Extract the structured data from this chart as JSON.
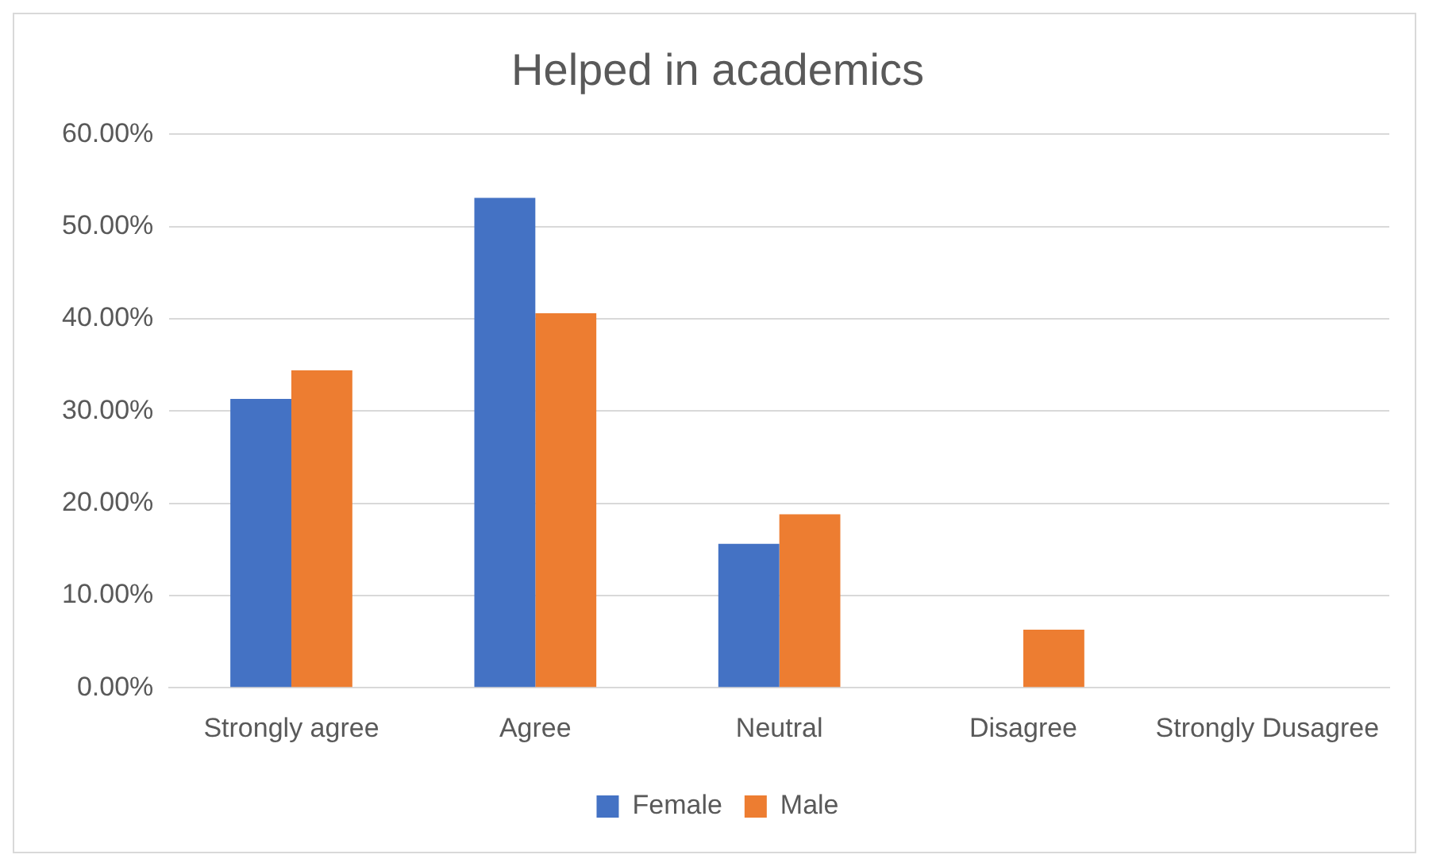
{
  "chart_data": {
    "type": "bar",
    "title": "Helped in academics",
    "categories": [
      "Strongly agree",
      "Agree",
      "Neutral",
      "Disagree",
      "Strongly Dusagree"
    ],
    "series": [
      {
        "name": "Female",
        "color": "#4472c4",
        "values": [
          31.3,
          53.1,
          15.6,
          0,
          0
        ]
      },
      {
        "name": "Male",
        "color": "#ed7d31",
        "values": [
          34.4,
          40.6,
          18.8,
          6.3,
          0
        ]
      }
    ],
    "ylim": [
      0,
      60
    ],
    "yticks": [
      {
        "value": 0,
        "label": "0.00%"
      },
      {
        "value": 10,
        "label": "10.00%"
      },
      {
        "value": 20,
        "label": "20.00%"
      },
      {
        "value": 30,
        "label": "30.00%"
      },
      {
        "value": 40,
        "label": "40.00%"
      },
      {
        "value": 50,
        "label": "50.00%"
      },
      {
        "value": 60,
        "label": "60.00%"
      }
    ],
    "grid": "y",
    "legend": "bottom"
  }
}
